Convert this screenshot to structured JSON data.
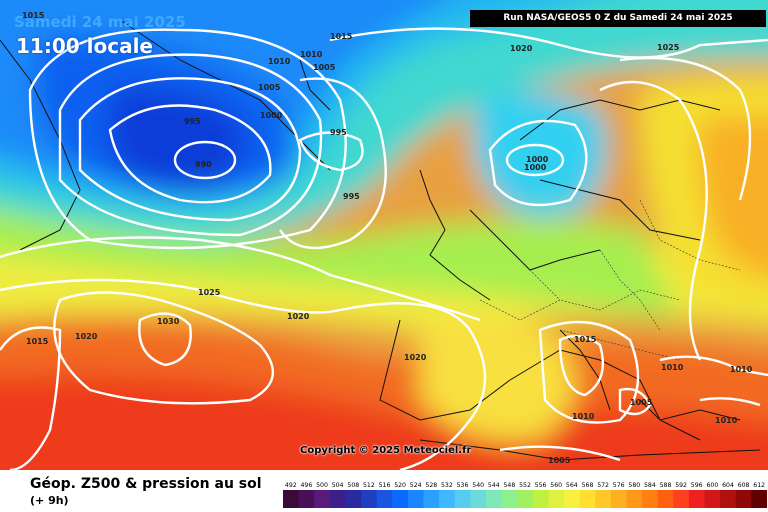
{
  "header": {
    "date_label": "Samedi 24 mai 2025",
    "time_label": "11:00 locale",
    "run_label": "Run NASA/GEOS5 0 Z du Samedi 24 mai 2025"
  },
  "copyright": "Copyright © 2025 Meteociel.fr",
  "legend": {
    "title": "Géop. Z500 & pression au sol",
    "subtitle": "(+ 9h)",
    "scale_values": [
      "492",
      "496",
      "500",
      "504",
      "508",
      "512",
      "516",
      "520",
      "524",
      "528",
      "532",
      "536",
      "540",
      "544",
      "548",
      "552",
      "556",
      "560",
      "564",
      "568",
      "572",
      "576",
      "580",
      "584",
      "588",
      "592",
      "596",
      "600",
      "604",
      "608",
      "612"
    ],
    "scale_colors": [
      "#3a0a3a",
      "#4b0f5a",
      "#5a1a7a",
      "#3b1f8a",
      "#2a2aa0",
      "#1f3fc0",
      "#1a55e0",
      "#0a6aff",
      "#1a85ff",
      "#2aa0ff",
      "#3fb8ff",
      "#55ccf0",
      "#6adbd8",
      "#7ee8b8",
      "#8cf08c",
      "#a0f060",
      "#c0f040",
      "#e0f040",
      "#f8f040",
      "#ffe030",
      "#ffc828",
      "#ffb020",
      "#ff9818",
      "#ff8010",
      "#ff6010",
      "#ff4020",
      "#f02020",
      "#d01818",
      "#b01010",
      "#900808",
      "#600000"
    ]
  },
  "isobar_labels": [
    "1015",
    "1010",
    "1005",
    "1000",
    "995",
    "990",
    "1015",
    "1010",
    "1005",
    "995",
    "995",
    "1020",
    "1025",
    "1000",
    "1000",
    "1025",
    "1030",
    "1020",
    "1015",
    "1020",
    "1020",
    "1015",
    "1010",
    "1005",
    "1010",
    "1010",
    "1010",
    "1005"
  ]
}
